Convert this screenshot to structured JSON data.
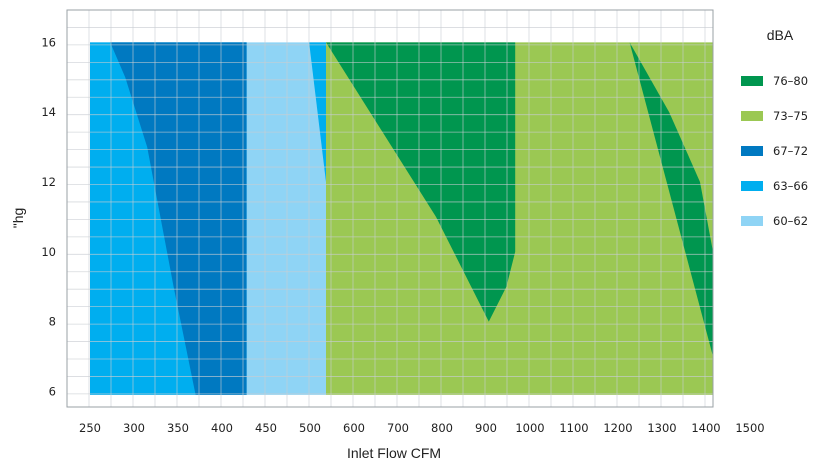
{
  "chart_data": {
    "type": "area",
    "xlabel": "Inlet Flow CFM",
    "ylabel": "\"hg",
    "xlim": [
      225,
      1520
    ],
    "ylim": [
      5.6,
      16.9
    ],
    "x_ticks": [
      "250",
      "300",
      "350",
      "400",
      "450",
      "500",
      "600",
      "700",
      "800",
      "900",
      "1000",
      "1100",
      "1200",
      "1300",
      "1400",
      "1500"
    ],
    "y_ticks": [
      "6",
      "8",
      "10",
      "12",
      "14",
      "16"
    ],
    "legend_title": "dBA",
    "legend_position": "right",
    "grid": true,
    "series": [
      {
        "name": "60–62",
        "color": "#8fd4f5",
        "region": [
          [
            250,
            5.9
          ],
          [
            250,
            16
          ],
          [
            546,
            16
          ],
          [
            546,
            5.9
          ]
        ]
      },
      {
        "name": "63–66",
        "color": "#00aeef",
        "region": [
          [
            250,
            5.9
          ],
          [
            250,
            16
          ],
          [
            428,
            16
          ],
          [
            428,
            5.9
          ]
        ]
      },
      {
        "name": "63–66",
        "color": "#00aeef",
        "region": [
          [
            499,
            16
          ],
          [
            546,
            16
          ],
          [
            546,
            12
          ]
        ]
      },
      {
        "name": "67–72",
        "color": "#0079c1",
        "region": [
          [
            370,
            5.9
          ],
          [
            345,
            9
          ],
          [
            315,
            13
          ],
          [
            290,
            15
          ],
          [
            273,
            16
          ],
          [
            428,
            16
          ],
          [
            428,
            5.9
          ]
        ]
      },
      {
        "name": "73–75",
        "color": "#9bc853",
        "region": [
          [
            546,
            5.9
          ],
          [
            546,
            16
          ],
          [
            1520,
            16
          ],
          [
            1520,
            5.9
          ]
        ]
      },
      {
        "name": "76–80",
        "color": "#00964f",
        "region": [
          [
            546,
            16
          ],
          [
            800,
            11
          ],
          [
            880,
            9
          ],
          [
            920,
            8
          ],
          [
            960,
            9
          ],
          [
            980,
            10
          ],
          [
            980,
            16
          ]
        ]
      },
      {
        "name": "76–80",
        "color": "#00964f",
        "region": [
          [
            1240,
            16
          ],
          [
            1330,
            14
          ],
          [
            1400,
            12
          ],
          [
            1480,
            10
          ],
          [
            1520,
            7
          ]
        ]
      }
    ]
  }
}
